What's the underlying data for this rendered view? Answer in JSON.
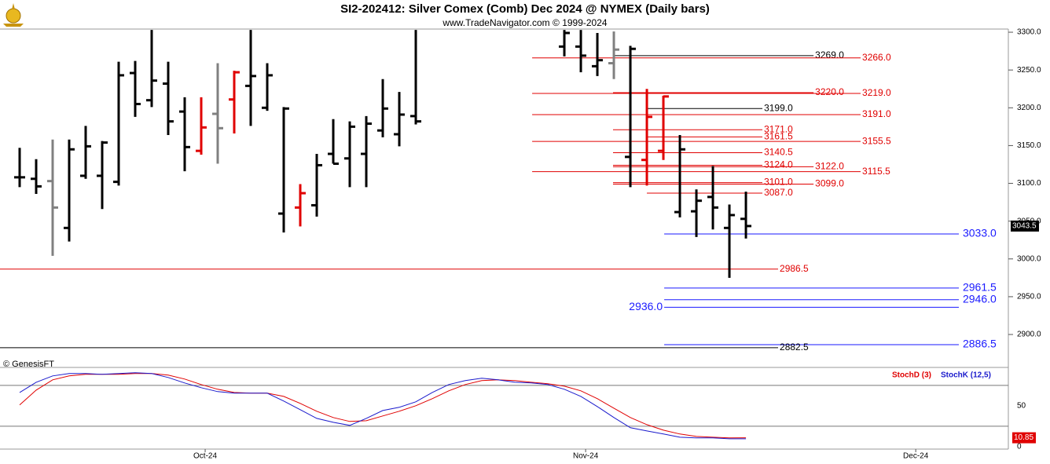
{
  "chart_data": [
    {
      "type": "ohlc",
      "title": "SI2-202412:  Silver Comex (Comb) Dec 2024 @ NYMEX  (Daily bars)",
      "subtitle": "www.TradeNavigator.com © 1999-2024",
      "annotation": "© GenesisFT",
      "x": [
        0,
        1,
        2,
        3,
        4,
        5,
        6,
        7,
        8,
        9,
        10,
        11,
        12,
        13,
        14,
        15,
        16,
        17,
        18,
        19,
        20,
        21,
        22,
        23,
        24,
        33,
        34,
        35,
        36,
        37,
        38,
        39,
        40,
        41,
        42,
        43,
        44
      ],
      "open": [
        3108,
        3106,
        3103,
        3041,
        3110,
        3110,
        3102,
        3246,
        3210,
        3232,
        3195,
        3143,
        3192,
        3211,
        3229,
        3200,
        3060,
        3068,
        3071,
        3139,
        3133,
        3139,
        3170,
        3165,
        3189,
        3281,
        3281,
        3255,
        3259,
        3135,
        3131,
        3143,
        3062,
        3063,
        3082,
        3041,
        3053
      ],
      "high": [
        3147,
        3132,
        3158,
        3158,
        3176,
        3156,
        3261,
        3262,
        3303,
        3261,
        3214,
        3214,
        3259,
        3249,
        3303,
        3259,
        3201,
        3099,
        3139,
        3185,
        3182,
        3189,
        3238,
        3221,
        3303,
        3303,
        3303,
        3299,
        3301,
        3282,
        3225,
        3216,
        3164,
        3092,
        3123,
        3072,
        3089
      ],
      "low": [
        3095,
        3086,
        3004,
        3023,
        3106,
        3066,
        3097,
        3188,
        3201,
        3164,
        3116,
        3138,
        3126,
        3166,
        3176,
        3196,
        3035,
        3043,
        3056,
        3126,
        3095,
        3095,
        3161,
        3149,
        3178,
        3268,
        3247,
        3242,
        3238,
        3095,
        3097,
        3131,
        3055,
        3029,
        3039,
        2975,
        3027
      ],
      "close": [
        3108,
        3096,
        3068,
        3145,
        3149,
        3154,
        3243,
        3205,
        3236,
        3182,
        3148,
        3174,
        3173,
        3247,
        3242,
        3243,
        3199,
        3087,
        3124,
        3126,
        3175,
        3179,
        3199,
        3191,
        3182,
        3299,
        3269,
        3263,
        3277,
        3278,
        3188,
        3215,
        3145,
        3077,
        3068,
        3058,
        3043.5
      ],
      "colors": [
        "#000000",
        "#000000",
        "#808080",
        "#000000",
        "#000000",
        "#000000",
        "#000000",
        "#000000",
        "#000000",
        "#000000",
        "#000000",
        "#e00000",
        "#808080",
        "#e00000",
        "#000000",
        "#000000",
        "#000000",
        "#e00000",
        "#000000",
        "#000000",
        "#000000",
        "#000000",
        "#000000",
        "#000000",
        "#000000",
        "#000000",
        "#000000",
        "#000000",
        "#808080",
        "#000000",
        "#e00000",
        "#e00000",
        "#000000",
        "#000000",
        "#000000",
        "#000000",
        "#000000"
      ],
      "xlim": [
        -1.19,
        59.9
      ],
      "ylim": [
        2856.4,
        3304.2
      ],
      "yticks": [
        {
          "value": 3300,
          "label": "3300.0"
        },
        {
          "value": 3250,
          "label": "3250.0"
        },
        {
          "value": 3200,
          "label": "3200.0"
        },
        {
          "value": 3150,
          "label": "3150.0"
        },
        {
          "value": 3100,
          "label": "3100.0"
        },
        {
          "value": 3050,
          "label": "3050.0"
        },
        {
          "value": 3000,
          "label": "3000.0"
        },
        {
          "value": 2950,
          "label": "2950.0"
        },
        {
          "value": 2900,
          "label": "2900.0"
        }
      ],
      "levels": [
        {
          "value": 3269,
          "label": "3269.0",
          "color": "#000000",
          "from": 35.95,
          "to": 48.1
        },
        {
          "value": 3266,
          "label": "3266.0",
          "color": "#e00000",
          "from": 31.05,
          "to": 50.95
        },
        {
          "value": 3220,
          "label": "3220.0",
          "color": "#e00000",
          "from": 35.95,
          "to": 48.1
        },
        {
          "value": 3219,
          "label": "3219.0",
          "color": "#e00000",
          "from": 31.05,
          "to": 50.95
        },
        {
          "value": 3199,
          "label": "3199.0",
          "color": "#000000",
          "from": 38.0,
          "to": 45.0
        },
        {
          "value": 3191,
          "label": "3191.0",
          "color": "#e00000",
          "from": 31.05,
          "to": 50.95
        },
        {
          "value": 3171,
          "label": "3171.0",
          "color": "#e00000",
          "from": 35.95,
          "to": 45.0
        },
        {
          "value": 3161.5,
          "label": "3161.5",
          "color": "#e00000",
          "from": 38.0,
          "to": 45.0
        },
        {
          "value": 3155.5,
          "label": "3155.5",
          "color": "#e00000",
          "from": 31.05,
          "to": 50.95
        },
        {
          "value": 3140.5,
          "label": "3140.5",
          "color": "#e00000",
          "from": 35.95,
          "to": 45.0
        },
        {
          "value": 3124,
          "label": "3124.0",
          "color": "#e00000",
          "from": 35.95,
          "to": 45.0
        },
        {
          "value": 3122,
          "label": "3122.0",
          "color": "#e00000",
          "from": 35.95,
          "to": 48.1
        },
        {
          "value": 3115.5,
          "label": "3115.5",
          "color": "#e00000",
          "from": 31.05,
          "to": 50.95
        },
        {
          "value": 3101,
          "label": "3101.0",
          "color": "#e00000",
          "from": 35.95,
          "to": 45.0
        },
        {
          "value": 3099,
          "label": "3099.0",
          "color": "#e00000",
          "from": 35.95,
          "to": 48.1
        },
        {
          "value": 3087,
          "label": "3087.0",
          "color": "#e00000",
          "from": 38.0,
          "to": 45.0
        },
        {
          "value": 3033,
          "label": "3033.0",
          "color": "#1a1aff",
          "from": 39.05,
          "to": 56.9
        },
        {
          "value": 2986.5,
          "label": "2986.5",
          "color": "#e00000",
          "from": -1.19,
          "to": 45.95
        },
        {
          "value": 2961.5,
          "label": "2961.5",
          "color": "#1a1aff",
          "from": 39.05,
          "to": 56.9
        },
        {
          "value": 2946,
          "label": "2946.0",
          "color": "#1a1aff",
          "from": 39.05,
          "to": 56.9
        },
        {
          "value": 2936,
          "label": "2936.0",
          "color": "#1a1aff",
          "from": 39.05,
          "to": 56.9,
          "label_side": "left"
        },
        {
          "value": 2886.5,
          "label": "2886.5",
          "color": "#1a1aff",
          "from": 39.05,
          "to": 56.9
        },
        {
          "value": 2882.5,
          "label": "2882.5",
          "color": "#000000",
          "from": -1.19,
          "to": 45.95
        }
      ]
    },
    {
      "type": "line",
      "x": [
        0,
        1,
        2,
        3,
        4,
        5,
        6,
        7,
        8,
        9,
        10,
        11,
        12,
        13,
        14,
        15,
        16,
        17,
        18,
        19,
        20,
        21,
        22,
        23,
        24,
        25,
        26,
        27,
        28,
        29,
        30,
        31,
        32,
        33,
        34,
        35,
        36,
        37,
        38,
        39,
        40,
        41,
        42,
        43,
        44
      ],
      "series": [
        {
          "name": "StochD (3)",
          "color": "#e00000",
          "values": [
            51,
            69.2,
            81.7,
            86.5,
            88.5,
            88.5,
            88.5,
            89.4,
            89.4,
            87.5,
            82.7,
            76,
            70.2,
            66.3,
            65.4,
            65.4,
            61.5,
            52.9,
            43.3,
            35.6,
            30.8,
            31.7,
            37.5,
            43.3,
            50,
            58.7,
            68.3,
            76,
            80.8,
            81.7,
            80.8,
            78.8,
            76.9,
            74,
            68.3,
            58.7,
            47.1,
            35.6,
            26.9,
            20.2,
            15.4,
            12.5,
            11.5,
            10.6,
            10.85
          ]
        },
        {
          "name": "StochK (12,5)",
          "color": "#1a1acc",
          "values": [
            66.3,
            78.8,
            86.5,
            89.4,
            89.4,
            88.5,
            89.4,
            90.4,
            89.4,
            84.6,
            77.9,
            72.1,
            67.3,
            65.4,
            65.4,
            65.4,
            55.8,
            45.2,
            34.6,
            29.8,
            26,
            34.6,
            44.2,
            48.1,
            54.8,
            66.3,
            76,
            80.8,
            83.7,
            81.7,
            78.8,
            77.9,
            76,
            70.2,
            61.5,
            49,
            35.6,
            23.1,
            19.2,
            15.4,
            11.5,
            10.6,
            10.6,
            9.6,
            9.6
          ]
        }
      ],
      "xlim": [
        -1.19,
        59.9
      ],
      "ylim": [
        -3,
        95
      ],
      "yticks": [
        0,
        50
      ],
      "grid_lines": [
        25,
        75
      ],
      "xticks": [
        {
          "value": 11.24,
          "label": "Oct-24"
        },
        {
          "value": 34.29,
          "label": "Nov-24"
        },
        {
          "value": 54.29,
          "label": "Dec-24"
        }
      ]
    }
  ]
}
